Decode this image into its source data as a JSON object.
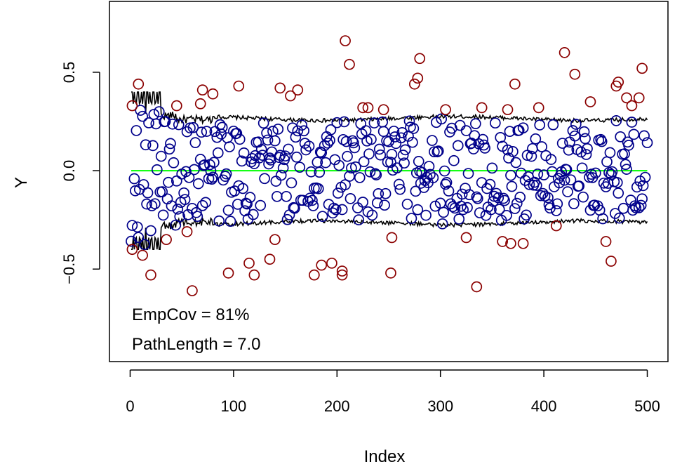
{
  "chart_data": {
    "type": "scatter",
    "xlabel": "Index",
    "ylabel": "Y",
    "xlim": [
      -20,
      520
    ],
    "ylim": [
      -0.97,
      0.86
    ],
    "x_ticks": [
      0,
      100,
      200,
      300,
      400,
      500
    ],
    "y_ticks": [
      -0.5,
      0.0,
      0.5
    ],
    "x_tick_labels": [
      "0",
      "100",
      "200",
      "300",
      "400",
      "500"
    ],
    "y_tick_labels": [
      "−0.5",
      "0.0",
      "0.5"
    ],
    "grid": false,
    "legend": "none",
    "n_points": 500,
    "colors": {
      "inside_band": "#00008B",
      "outside_band": "#8B0000",
      "band_line": "#000000",
      "center_line": "#00FF00"
    },
    "center_line": {
      "y": 0
    },
    "outside_points": [
      [
        2,
        0.33
      ],
      [
        2,
        -0.4
      ],
      [
        8,
        0.44
      ],
      [
        12,
        -0.43
      ],
      [
        20,
        -0.53
      ],
      [
        35,
        -0.35
      ],
      [
        45,
        0.33
      ],
      [
        55,
        -0.31
      ],
      [
        60,
        -0.61
      ],
      [
        68,
        0.34
      ],
      [
        70,
        0.41
      ],
      [
        80,
        0.39
      ],
      [
        95,
        -0.52
      ],
      [
        105,
        0.43
      ],
      [
        115,
        -0.47
      ],
      [
        120,
        -0.53
      ],
      [
        135,
        -0.45
      ],
      [
        140,
        -0.35
      ],
      [
        145,
        0.42
      ],
      [
        155,
        0.38
      ],
      [
        162,
        0.41
      ],
      [
        178,
        -0.53
      ],
      [
        185,
        -0.48
      ],
      [
        195,
        -0.47
      ],
      [
        205,
        -0.51
      ],
      [
        205,
        -0.53
      ],
      [
        208,
        0.66
      ],
      [
        212,
        0.54
      ],
      [
        225,
        0.32
      ],
      [
        230,
        0.32
      ],
      [
        245,
        0.31
      ],
      [
        252,
        -0.52
      ],
      [
        253,
        -0.34
      ],
      [
        275,
        0.44
      ],
      [
        278,
        0.47
      ],
      [
        280,
        0.57
      ],
      [
        305,
        0.31
      ],
      [
        325,
        -0.34
      ],
      [
        335,
        -0.59
      ],
      [
        340,
        0.32
      ],
      [
        360,
        -0.36
      ],
      [
        365,
        0.31
      ],
      [
        368,
        -0.37
      ],
      [
        372,
        0.44
      ],
      [
        380,
        -0.37
      ],
      [
        395,
        0.32
      ],
      [
        412,
        -0.28
      ],
      [
        420,
        0.6
      ],
      [
        430,
        0.49
      ],
      [
        445,
        0.35
      ],
      [
        460,
        -0.36
      ],
      [
        465,
        -0.46
      ],
      [
        470,
        0.43
      ],
      [
        472,
        0.45
      ],
      [
        480,
        0.37
      ],
      [
        485,
        0.33
      ],
      [
        492,
        0.37
      ],
      [
        495,
        0.52
      ]
    ]
  }
}
